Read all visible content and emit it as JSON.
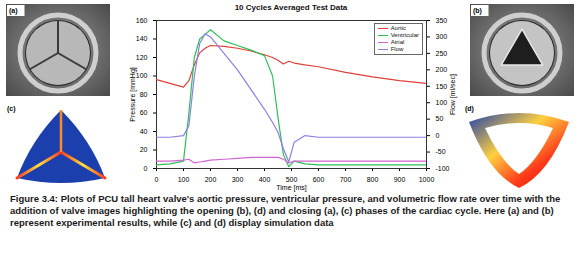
{
  "chart_data": {
    "type": "line",
    "title": "10 Cycles Averaged Test Data",
    "x_label": "Time [ms]",
    "y_label": "Pressure [mmHg]",
    "y2_label": "Flow [ml/sec]",
    "x": [
      0,
      50,
      100,
      120,
      140,
      160,
      180,
      200,
      250,
      300,
      350,
      400,
      430,
      450,
      470,
      490,
      510,
      550,
      600,
      700,
      800,
      900,
      1000
    ],
    "xlim": [
      0,
      1000
    ],
    "xticks": [
      0,
      100,
      200,
      300,
      400,
      500,
      600,
      700,
      800,
      900,
      1000
    ],
    "ylim": [
      0,
      160
    ],
    "yticks": [
      0,
      20,
      40,
      60,
      80,
      100,
      120,
      140,
      160
    ],
    "y2lim": [
      -100,
      350
    ],
    "y2ticks": [
      -100,
      -50,
      0,
      50,
      100,
      150,
      200,
      250,
      300,
      350
    ],
    "grid": false,
    "legend": "upper right",
    "series": [
      {
        "name": "Aortic",
        "color": "#e0403a",
        "values": [
          96,
          92,
          88,
          95,
          112,
          125,
          130,
          133,
          132,
          130,
          127,
          123,
          120,
          117,
          113,
          116,
          114,
          112,
          110,
          104,
          99,
          95,
          92
        ]
      },
      {
        "name": "Ventricular",
        "color": "#2fbf5a",
        "values": [
          4,
          5,
          8,
          60,
          120,
          140,
          145,
          150,
          138,
          133,
          128,
          122,
          100,
          55,
          15,
          2,
          8,
          5,
          4,
          4,
          4,
          4,
          4
        ]
      },
      {
        "name": "Atrial",
        "color": "#d066d0",
        "values": [
          8,
          8,
          9,
          10,
          6,
          7,
          8,
          9,
          10,
          11,
          12,
          12,
          12,
          12,
          10,
          6,
          8,
          8,
          8,
          8,
          8,
          8,
          8
        ]
      },
      {
        "name": "Flow",
        "color": "#8c7fe6",
        "axis": "y2",
        "values": [
          -5,
          -5,
          0,
          30,
          180,
          280,
          310,
          300,
          250,
          200,
          140,
          80,
          40,
          10,
          -40,
          -80,
          -20,
          0,
          -5,
          -5,
          -5,
          -5,
          -5
        ]
      }
    ]
  },
  "figure": {
    "panels": [
      "(a)",
      "(b)",
      "(c)",
      "(d)"
    ],
    "caption": "Figure 3.4: Plots of PCU tall heart valve's aortic pressure, ventricular pressure, and volumetric flow rate over time with the addition of valve images highlighting the opening (b), (d) and closing (a), (c) phases of the cardiac cycle. Here (a) and (b) represent experimental results, while (c) and (d) display simulation data"
  }
}
